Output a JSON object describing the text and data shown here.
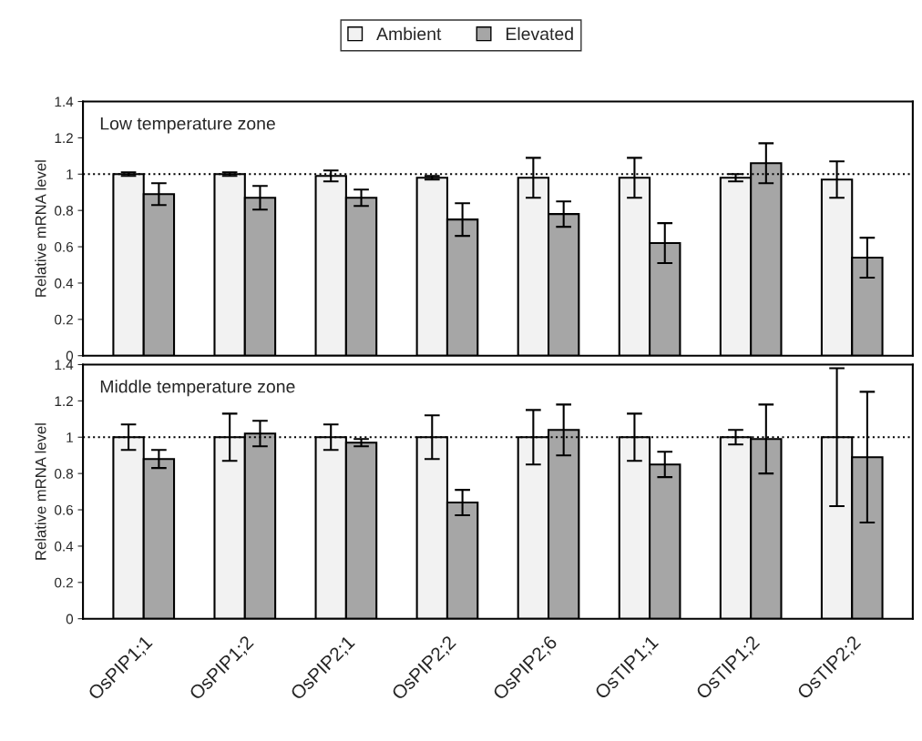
{
  "chart_data": [
    {
      "type": "bar",
      "title": "Low temperature zone",
      "ylabel": "Relative mRNA level",
      "categories": [
        null,
        null,
        null,
        null,
        null,
        null,
        null,
        null
      ],
      "series": [
        {
          "name": "Ambient",
          "color": "#f2f2f2",
          "values": [
            1.0,
            1.0,
            0.99,
            0.98,
            0.98,
            0.98,
            0.98,
            0.97
          ],
          "errors": [
            0.01,
            0.01,
            0.03,
            0.01,
            0.11,
            0.11,
            0.02,
            0.1
          ]
        },
        {
          "name": "Elevated",
          "color": "#a6a6a6",
          "values": [
            0.89,
            0.87,
            0.87,
            0.75,
            0.78,
            0.62,
            1.06,
            0.54
          ],
          "errors": [
            0.06,
            0.065,
            0.045,
            0.09,
            0.07,
            0.11,
            0.11,
            0.11
          ]
        }
      ],
      "ylim": [
        0,
        1.4
      ],
      "yticks": [
        0,
        0.2,
        0.4,
        0.6,
        0.8,
        1,
        1.2,
        1.4
      ],
      "ref_lines": [
        {
          "axis": "y",
          "value": 1,
          "color": "#000000",
          "line_style": "dotted"
        }
      ],
      "legend": "top",
      "tick_labels": "y",
      "grid": false
    },
    {
      "type": "bar",
      "title": "Middle temperature zone",
      "ylabel": "Relative mRNA level",
      "categories": [
        "OsPIP1;1",
        "OsPIP1;2",
        "OsPIP2;1",
        "OsPIP2;2",
        "OsPIP2;6",
        "OsTIP1;1",
        "OsTIP1;2",
        "OsTIP2;2"
      ],
      "series": [
        {
          "color": "#f2f2f2",
          "values": [
            1.0,
            1.0,
            1.0,
            1.0,
            1.0,
            1.0,
            1.0,
            1.0
          ],
          "errors": [
            0.07,
            0.13,
            0.07,
            0.12,
            0.15,
            0.13,
            0.04,
            0.38
          ]
        },
        {
          "color": "#a6a6a6",
          "values": [
            0.88,
            1.02,
            0.97,
            0.64,
            1.04,
            0.85,
            0.99,
            0.89
          ],
          "errors": [
            0.05,
            0.07,
            0.02,
            0.07,
            0.14,
            0.07,
            0.19,
            0.36
          ]
        }
      ],
      "ylim": [
        0,
        1.4
      ],
      "yticks": [
        0,
        0.2,
        0.4,
        0.6,
        0.8,
        1,
        1.2,
        1.4
      ],
      "ref_lines": [
        {
          "axis": "y",
          "value": 1,
          "color": "#000000",
          "line_style": "dotted"
        }
      ],
      "grid": false
    }
  ]
}
